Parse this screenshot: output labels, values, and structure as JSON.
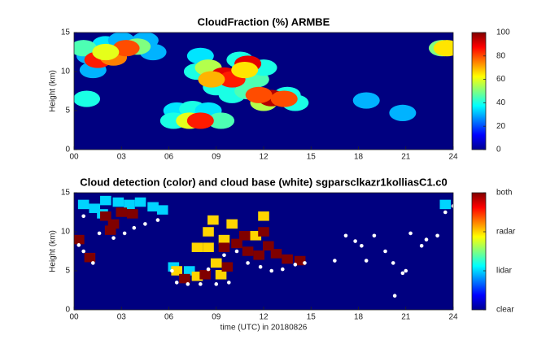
{
  "chart_data": [
    {
      "type": "heatmap",
      "title": "CloudFraction  (%) ARMBE",
      "ylabel": "Height (km)",
      "colormap": "jet",
      "xlim": [
        0,
        24
      ],
      "xticks": [
        {
          "value": 0,
          "label": "00"
        },
        {
          "value": 3,
          "label": "03"
        },
        {
          "value": 6,
          "label": "06"
        },
        {
          "value": 9,
          "label": "09"
        },
        12,
        15,
        18,
        21,
        24
      ],
      "ylim": [
        0,
        15
      ],
      "yticks": [
        0,
        5,
        10,
        15
      ],
      "clim": [
        0,
        100
      ],
      "cticks": [
        0,
        20,
        40,
        60,
        80,
        100
      ],
      "x": [
        1,
        2,
        3,
        4.5,
        5,
        1.2,
        0.8,
        0.6,
        2.5,
        4,
        1.5,
        2.5,
        3.3,
        2,
        7.8,
        8,
        9,
        10.5,
        11.5,
        12,
        10,
        11,
        8.5,
        9.5,
        10,
        11,
        8.7,
        10.8,
        13.5,
        14,
        12,
        12.5,
        13.3,
        11.7,
        6.5,
        7.5,
        8.5,
        6.3,
        9.3,
        7.3,
        8,
        23.3,
        23.6,
        18.5,
        20.8
      ],
      "y": [
        12,
        13.5,
        14,
        14,
        12.5,
        10.2,
        6.5,
        13,
        12,
        13.2,
        11.5,
        11.8,
        13,
        12.5,
        10,
        12,
        8,
        11.5,
        9,
        10.5,
        7,
        7.5,
        10.5,
        9.5,
        9,
        11,
        9,
        10.2,
        7,
        6,
        6,
        6.6,
        6.5,
        7,
        5,
        5.2,
        5,
        3.7,
        3.7,
        3.7,
        3.7,
        13,
        13,
        6.3,
        4.7
      ],
      "values": [
        30,
        35,
        30,
        30,
        30,
        30,
        40,
        45,
        45,
        50,
        85,
        75,
        80,
        60,
        40,
        35,
        40,
        40,
        45,
        40,
        40,
        45,
        55,
        90,
        85,
        90,
        70,
        65,
        40,
        40,
        55,
        95,
        80,
        80,
        35,
        40,
        35,
        40,
        45,
        60,
        85,
        50,
        65,
        30,
        30
      ]
    },
    {
      "type": "detection",
      "title": "Cloud detection (color) and cloud base (white) sgparsclkazr1kolliasC1.c0",
      "ylabel": "Height (km)",
      "xlabel": "time (UTC) in 20180826",
      "colormap": "jet",
      "xlim": [
        0,
        24
      ],
      "xticks": [
        {
          "value": 0,
          "label": "00"
        },
        {
          "value": 3,
          "label": "03"
        },
        {
          "value": 6,
          "label": "06"
        },
        {
          "value": 9,
          "label": "09"
        },
        12,
        15,
        18,
        21,
        24
      ],
      "ylim": [
        0,
        15
      ],
      "yticks": [
        0,
        5,
        10,
        15
      ],
      "clim": [
        0,
        3
      ],
      "cticks": [
        {
          "value": 0,
          "label": "clear"
        },
        {
          "value": 1,
          "label": "lidar"
        },
        {
          "value": 2,
          "label": "radar"
        },
        {
          "value": 3,
          "label": "both"
        }
      ],
      "x": [
        0.6,
        1.3,
        2,
        2.8,
        3.5,
        4.2,
        5,
        5.6,
        1.8,
        23.5,
        7.3,
        6.3,
        8.5,
        8.5,
        8.8,
        9,
        9.5,
        10,
        7.8,
        12,
        11.5,
        6.5,
        7.8,
        9.3,
        2,
        2.5,
        3,
        2.3,
        3.7,
        1,
        9.5,
        10.3,
        11,
        11.7,
        12.3,
        12.8,
        13.5,
        14.3,
        10.8,
        12,
        7,
        8.3,
        9.7,
        0.3
      ],
      "y": [
        13.5,
        13,
        14,
        13.8,
        13.5,
        13.8,
        13.2,
        12.8,
        12.3,
        13.5,
        5,
        5.5,
        8,
        10,
        11.5,
        6,
        9,
        11,
        8,
        12,
        9.5,
        5,
        4.3,
        4.5,
        12,
        11,
        12.5,
        10.2,
        12.3,
        6.7,
        8,
        8.5,
        7.5,
        7,
        8.2,
        7.2,
        6.5,
        6.3,
        9.5,
        10,
        4,
        4.5,
        5.5,
        9
      ],
      "values": [
        1,
        1,
        1,
        1,
        1,
        1,
        1,
        1,
        1,
        1,
        1,
        1,
        2,
        2,
        2,
        2,
        2,
        2,
        2,
        2,
        2,
        2,
        2,
        2,
        3,
        3,
        3,
        3,
        3,
        3,
        3,
        3,
        3,
        3,
        3,
        3,
        3,
        3,
        3,
        3,
        3,
        3,
        3,
        3
      ],
      "cloud_base": {
        "x": [
          0.3,
          0.6,
          1.2,
          1.6,
          2.5,
          3.2,
          3.8,
          4.5,
          5.3,
          0.6,
          6.5,
          7.2,
          8,
          9,
          9.8,
          6.2,
          8.5,
          9.5,
          10.3,
          11,
          11.8,
          12.5,
          13.2,
          14,
          14.6,
          16.5,
          17.2,
          17.8,
          18.5,
          19,
          19.7,
          20.2,
          20.8,
          21,
          20.3,
          22.3,
          23,
          23.5,
          24,
          18.2,
          21.3,
          22
        ],
        "y": [
          8.3,
          7.5,
          6,
          9.8,
          9.2,
          9.8,
          10.5,
          11,
          11.5,
          12,
          3.5,
          3.3,
          3.3,
          3.3,
          3.5,
          5,
          5.2,
          7,
          7.5,
          6,
          5.5,
          5,
          5.2,
          5.8,
          6,
          6.3,
          9.5,
          8.8,
          6.3,
          9.5,
          7.5,
          6,
          4.7,
          5,
          1.8,
          9,
          9.5,
          12.5,
          13.3,
          8.2,
          9.8,
          8.2
        ]
      }
    }
  ]
}
